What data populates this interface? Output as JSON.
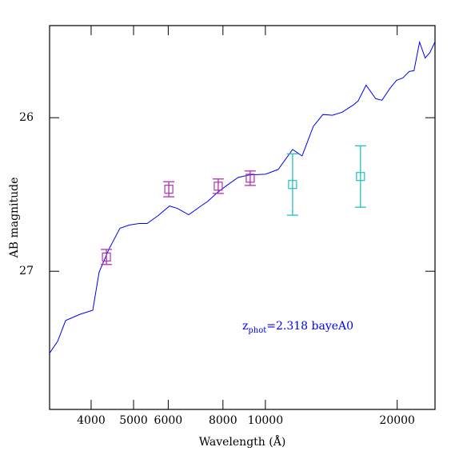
{
  "chart_data": {
    "type": "line",
    "xlabel": "Wavelength (Å)",
    "ylabel": "AB magnitude",
    "annotation": [
      "z",
      "phot",
      "=2.318 bayeA0"
    ],
    "annotation_color": "#0000ff",
    "xscale": "log",
    "xlim": [
      3215,
      24400
    ],
    "xticks": [
      4000,
      5000,
      6000,
      8000,
      10000,
      20000
    ],
    "ylim": [
      27.9,
      25.4
    ],
    "yticks": [
      26,
      27
    ],
    "series": [
      {
        "kind": "line",
        "color": "#0000ff",
        "x": [
          3215,
          3354,
          3499,
          3773,
          4035,
          4172,
          4387,
          4655,
          4894,
          5148,
          5370,
          5694,
          6040,
          6300,
          6682,
          7084,
          7391,
          7772,
          8175,
          8668,
          9194,
          10000,
          10696,
          11537,
          12133,
          12866,
          13530,
          14230,
          14966,
          15876,
          16280,
          16982,
          17859,
          18466,
          19266,
          19928,
          20603,
          21302,
          21846,
          22498,
          23174,
          23760,
          24377
        ],
        "values": [
          27.534,
          27.456,
          27.321,
          27.28,
          27.254,
          27.005,
          26.86,
          26.72,
          26.699,
          26.689,
          26.689,
          26.637,
          26.575,
          26.591,
          26.632,
          26.58,
          26.544,
          26.487,
          26.44,
          26.389,
          26.373,
          26.368,
          26.337,
          26.207,
          26.249,
          26.057,
          25.979,
          25.984,
          25.964,
          25.917,
          25.891,
          25.788,
          25.876,
          25.886,
          25.808,
          25.756,
          25.741,
          25.699,
          25.694,
          25.508,
          25.611,
          25.575,
          25.508
        ]
      },
      {
        "kind": "errorbar",
        "color": "#b030b0",
        "x": [
          4335,
          6018,
          7805,
          9233
        ],
        "values": [
          26.907,
          26.466,
          26.446,
          26.394
        ],
        "errors": [
          0.049,
          0.049,
          0.047,
          0.047
        ]
      },
      {
        "kind": "errorbar",
        "color": "#20c0c0",
        "x": [
          11537,
          16490
        ],
        "values": [
          26.435,
          26.383
        ],
        "errors": [
          0.2,
          0.2
        ]
      }
    ]
  }
}
